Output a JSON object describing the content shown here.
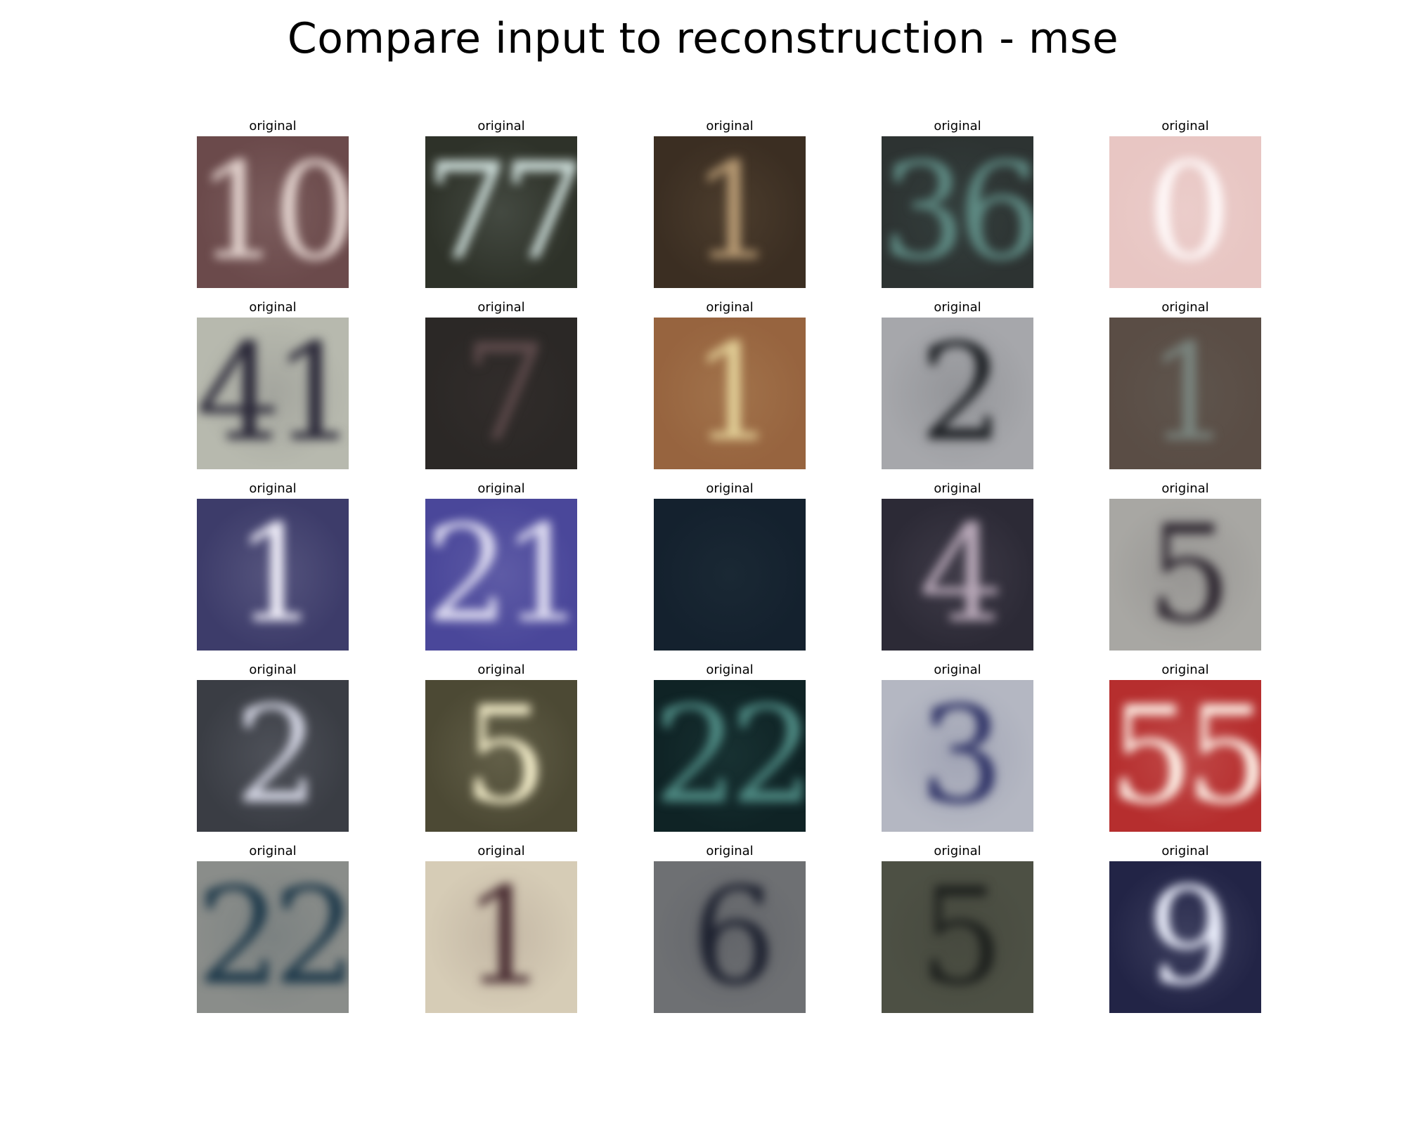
{
  "figure": {
    "title": "Compare input to reconstruction - mse"
  },
  "panels": [
    {
      "label": "original",
      "digits": "10",
      "bg": "#6b4a4b",
      "fg": "#e2d2cd"
    },
    {
      "label": "original",
      "digits": "77",
      "bg": "#2e3229",
      "fg": "#cfe0dc"
    },
    {
      "label": "original",
      "digits": "1",
      "bg": "#3b2e22",
      "fg": "#b79a73"
    },
    {
      "label": "original",
      "digits": "36",
      "bg": "#2d3332",
      "fg": "#5e8a83"
    },
    {
      "label": "original",
      "digits": "0",
      "bg": "#e8c6c3",
      "fg": "#fffafa"
    },
    {
      "label": "original",
      "digits": "41",
      "bg": "#b7b9ae",
      "fg": "#2a2838"
    },
    {
      "label": "original",
      "digits": "7",
      "bg": "#2b2826",
      "fg": "#5d4a4b"
    },
    {
      "label": "original",
      "digits": "1",
      "bg": "#97643f",
      "fg": "#e2cf97"
    },
    {
      "label": "original",
      "digits": "2",
      "bg": "#a6a7ab",
      "fg": "#1c1f23"
    },
    {
      "label": "original",
      "digits": "1",
      "bg": "#5a4d45",
      "fg": "#7a857f"
    },
    {
      "label": "original",
      "digits": "1",
      "bg": "#3d3c6a",
      "fg": "#f3f1fb"
    },
    {
      "label": "original",
      "digits": "21",
      "bg": "#4a479a",
      "fg": "#dedcf1"
    },
    {
      "label": "original",
      "digits": "",
      "bg": "#14212e",
      "fg": "#40575a"
    },
    {
      "label": "original",
      "digits": "4",
      "bg": "#2c2a36",
      "fg": "#b8a8b8"
    },
    {
      "label": "original",
      "digits": "5",
      "bg": "#a8a7a3",
      "fg": "#2e2730"
    },
    {
      "label": "original",
      "digits": "2",
      "bg": "#3a3d44",
      "fg": "#d2d4e2"
    },
    {
      "label": "original",
      "digits": "5",
      "bg": "#4c4934",
      "fg": "#f3edc9"
    },
    {
      "label": "original",
      "digits": "22",
      "bg": "#0f2325",
      "fg": "#4e8a83"
    },
    {
      "label": "original",
      "digits": "3",
      "bg": "#b4b7c2",
      "fg": "#2e3266"
    },
    {
      "label": "original",
      "digits": "55",
      "bg": "#b62e2e",
      "fg": "#fff4ea"
    },
    {
      "label": "original",
      "digits": "22",
      "bg": "#8a8d8a",
      "fg": "#1f3a4b"
    },
    {
      "label": "original",
      "digits": "1",
      "bg": "#d6ccb6",
      "fg": "#4a2e33"
    },
    {
      "label": "original",
      "digits": "6",
      "bg": "#6e7073",
      "fg": "#1e2230"
    },
    {
      "label": "original",
      "digits": "5",
      "bg": "#4d5044",
      "fg": "#1e211e"
    },
    {
      "label": "original",
      "digits": "9",
      "bg": "#222446",
      "fg": "#e9ecfa"
    }
  ]
}
